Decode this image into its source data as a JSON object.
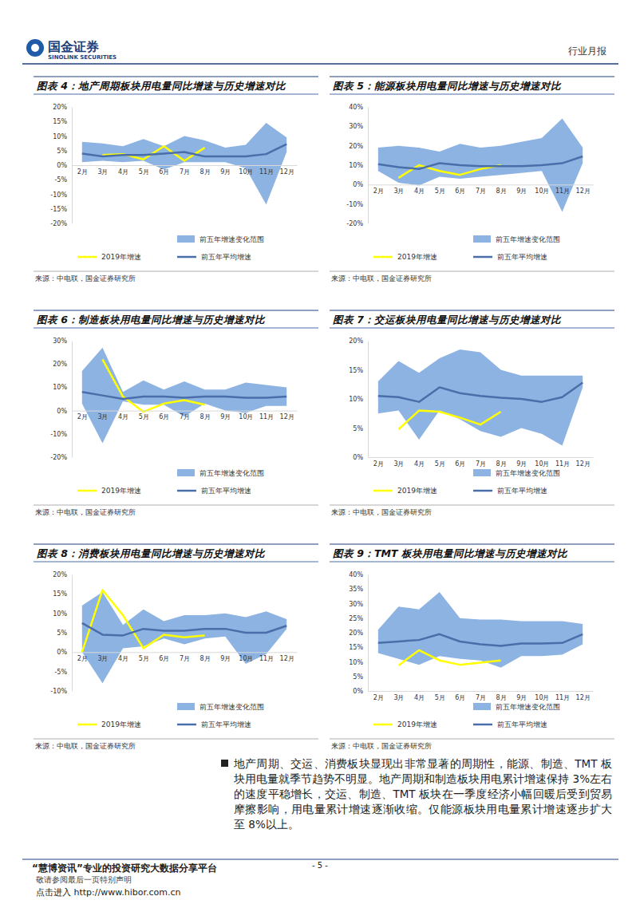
{
  "header": {
    "company": "国金证券",
    "company_en": "SINOLINK SECURITIES",
    "report_type": "行业月报"
  },
  "chart_data": [
    {
      "type": "line",
      "title": "图表 4：地产周期板块用电量同比增速与历史增速对比",
      "source": "来源：中电联，国金证券研究所",
      "categories": [
        "2月",
        "3月",
        "4月",
        "5月",
        "6月",
        "7月",
        "8月",
        "9月",
        "10月",
        "11月",
        "12月"
      ],
      "ylim": [
        -20,
        20
      ],
      "yticks": [
        {
          "value": -20,
          "label": "-20%"
        },
        {
          "value": -15,
          "label": "-15%"
        },
        {
          "value": -10,
          "label": "-10%"
        },
        {
          "value": -5,
          "label": "-5%"
        },
        {
          "value": 0,
          "label": "0%"
        },
        {
          "value": 5,
          "label": "5%"
        },
        {
          "value": 10,
          "label": "10%"
        },
        {
          "value": 15,
          "label": "15%"
        },
        {
          "value": 20,
          "label": "20%"
        }
      ],
      "grid": false,
      "legend": "bottom",
      "series": [
        {
          "name": "前五年增速变化范围",
          "type": "area",
          "color": "#8db3e2",
          "values": [
            8,
            7.5,
            6.5,
            9,
            6.5,
            10,
            8.5,
            6,
            7,
            14.5,
            9.5
          ],
          "low": [
            1,
            1.5,
            1,
            1.5,
            -1.5,
            1,
            1,
            1,
            -1,
            -13.5,
            4.5
          ]
        },
        {
          "name": "2019年增速",
          "type": "line",
          "color": "#ffff00",
          "values": [
            null,
            3.5,
            3.8,
            2,
            6.5,
            1.5,
            6,
            null,
            null,
            null,
            null
          ]
        },
        {
          "name": "前五年平均增速",
          "type": "line",
          "color": "#4a6ea9",
          "values": [
            4,
            3,
            3.5,
            3.5,
            4,
            4.5,
            3,
            3,
            3,
            3.8,
            7.2
          ]
        }
      ]
    },
    {
      "type": "line",
      "title": "图表 5：能源板块用电量同比增速与历史增速对比",
      "source": "来源：中电联，国金证券研究所",
      "categories": [
        "2月",
        "3月",
        "4月",
        "5月",
        "6月",
        "7月",
        "8月",
        "9月",
        "10月",
        "11月",
        "12月"
      ],
      "ylim": [
        -20,
        40
      ],
      "yticks": [
        {
          "value": -20,
          "label": "-20%"
        },
        {
          "value": -10,
          "label": "-10%"
        },
        {
          "value": 0,
          "label": "0%"
        },
        {
          "value": 10,
          "label": "10%"
        },
        {
          "value": 20,
          "label": "20%"
        },
        {
          "value": 30,
          "label": "30%"
        },
        {
          "value": 40,
          "label": "40%"
        }
      ],
      "grid": false,
      "legend": "bottom",
      "series": [
        {
          "name": "前五年增速变化范围",
          "type": "area",
          "color": "#8db3e2",
          "values": [
            19,
            20,
            19,
            17,
            21,
            19,
            20,
            22,
            24,
            34,
            19
          ],
          "low": [
            7,
            1,
            -0.5,
            4,
            3,
            4,
            5,
            6,
            7,
            -14,
            11
          ]
        },
        {
          "name": "2019年增速",
          "type": "line",
          "color": "#ffff00",
          "values": [
            null,
            3.5,
            10,
            7,
            5,
            8,
            10,
            null,
            null,
            null,
            null
          ]
        },
        {
          "name": "前五年平均增速",
          "type": "line",
          "color": "#4a6ea9",
          "values": [
            10.5,
            9,
            8,
            11,
            10,
            9.5,
            9.5,
            9.5,
            10,
            11,
            14.5
          ]
        }
      ]
    },
    {
      "type": "line",
      "title": "图表 6：制造板块用电量同比增速与历史增速对比",
      "source": "来源：中电联，国金证券研究所",
      "categories": [
        "2月",
        "3月",
        "4月",
        "5月",
        "6月",
        "7月",
        "8月",
        "9月",
        "10月",
        "11月",
        "12月"
      ],
      "ylim": [
        -20,
        30
      ],
      "yticks": [
        {
          "value": -20,
          "label": "-20%"
        },
        {
          "value": -10,
          "label": "-10%"
        },
        {
          "value": 0,
          "label": "0%"
        },
        {
          "value": 10,
          "label": "10%"
        },
        {
          "value": 20,
          "label": "20%"
        },
        {
          "value": 30,
          "label": "30%"
        }
      ],
      "grid": false,
      "legend": "bottom",
      "series": [
        {
          "name": "前五年增速变化范围",
          "type": "area",
          "color": "#8db3e2",
          "values": [
            17,
            27,
            8,
            13,
            9,
            12.5,
            9,
            9,
            12,
            11,
            10
          ],
          "low": [
            3,
            -14,
            4,
            2.5,
            2.5,
            -2.5,
            3,
            0,
            -1,
            2,
            2
          ]
        },
        {
          "name": "2019年增速",
          "type": "line",
          "color": "#ffff00",
          "values": [
            null,
            22,
            6,
            -0.5,
            3,
            4.5,
            2.5,
            null,
            null,
            null,
            null
          ]
        },
        {
          "name": "前五年平均增速",
          "type": "line",
          "color": "#4a6ea9",
          "values": [
            8,
            6.5,
            5,
            6,
            6,
            5.5,
            6,
            6,
            5.5,
            5.5,
            6
          ]
        }
      ]
    },
    {
      "type": "line",
      "title": "图表 7：交运板块用电量同比增速与历史增速对比",
      "source": "来源：中电联，国金证券研究所",
      "categories": [
        "2月",
        "3月",
        "4月",
        "5月",
        "6月",
        "7月",
        "8月",
        "9月",
        "10月",
        "11月",
        "12月"
      ],
      "ylim": [
        0,
        20
      ],
      "yticks": [
        {
          "value": 0,
          "label": "0%"
        },
        {
          "value": 5,
          "label": "5%"
        },
        {
          "value": 10,
          "label": "10%"
        },
        {
          "value": 15,
          "label": "15%"
        },
        {
          "value": 20,
          "label": "20%"
        }
      ],
      "grid": false,
      "legend": "bottom",
      "series": [
        {
          "name": "前五年增速变化范围",
          "type": "area",
          "color": "#8db3e2",
          "values": [
            13,
            16.5,
            14.5,
            17,
            18.5,
            18,
            15,
            14,
            14,
            14,
            14
          ],
          "low": [
            7.5,
            8,
            3,
            8,
            6.5,
            4.5,
            3.5,
            5,
            4,
            2,
            12
          ]
        },
        {
          "name": "2019年增速",
          "type": "line",
          "color": "#ffff00",
          "values": [
            null,
            4.8,
            8,
            7.8,
            6.8,
            5.6,
            7.8,
            null,
            null,
            null,
            null
          ]
        },
        {
          "name": "前五年平均增速",
          "type": "line",
          "color": "#4a6ea9",
          "values": [
            10.5,
            10.3,
            9.5,
            12,
            11,
            10.5,
            10.2,
            10,
            9.5,
            10.3,
            12.8
          ]
        }
      ]
    },
    {
      "type": "line",
      "title": "图表 8：消费板块用电量同比增速与历史增速对比",
      "source": "来源：中电联，国金证券研究所",
      "categories": [
        "2月",
        "3月",
        "4月",
        "5月",
        "6月",
        "7月",
        "8月",
        "9月",
        "10月",
        "11月",
        "12月"
      ],
      "ylim": [
        -10,
        20
      ],
      "yticks": [
        {
          "value": -10,
          "label": "-10%"
        },
        {
          "value": -5,
          "label": "-5%"
        },
        {
          "value": 0,
          "label": "0%"
        },
        {
          "value": 5,
          "label": "5%"
        },
        {
          "value": 10,
          "label": "10%"
        },
        {
          "value": 15,
          "label": "15%"
        },
        {
          "value": 20,
          "label": "20%"
        }
      ],
      "grid": false,
      "legend": "bottom",
      "series": [
        {
          "name": "前五年增速变化范围",
          "type": "area",
          "color": "#8db3e2",
          "values": [
            12,
            15.5,
            7,
            11,
            8,
            9.5,
            9.5,
            10,
            9,
            10.5,
            8.5
          ],
          "low": [
            0,
            -8,
            1,
            1.5,
            3.5,
            2,
            3.5,
            4,
            -3,
            -0.5,
            6
          ]
        },
        {
          "name": "2019年增速",
          "type": "line",
          "color": "#ffff00",
          "values": [
            0,
            16,
            9.5,
            1,
            4.5,
            3.8,
            4.3,
            null,
            null,
            null,
            null
          ]
        },
        {
          "name": "前五年平均增速",
          "type": "line",
          "color": "#4a6ea9",
          "values": [
            7.5,
            4.5,
            4.3,
            6,
            5.5,
            5.5,
            6,
            6,
            5,
            5,
            6.8
          ]
        }
      ]
    },
    {
      "type": "line",
      "title": "图表 9：TMT 板块用电量同比增速与历史增速对比",
      "source": "来源：中电联，国金证券研究所",
      "categories": [
        "2月",
        "3月",
        "4月",
        "5月",
        "6月",
        "7月",
        "8月",
        "9月",
        "10月",
        "11月",
        "12月"
      ],
      "ylim": [
        0,
        40
      ],
      "yticks": [
        {
          "value": 0,
          "label": "0%"
        },
        {
          "value": 5,
          "label": "5%"
        },
        {
          "value": 10,
          "label": "10%"
        },
        {
          "value": 15,
          "label": "15%"
        },
        {
          "value": 20,
          "label": "20%"
        },
        {
          "value": 25,
          "label": "25%"
        },
        {
          "value": 30,
          "label": "30%"
        },
        {
          "value": 35,
          "label": "35%"
        },
        {
          "value": 40,
          "label": "40%"
        }
      ],
      "grid": false,
      "legend": "bottom",
      "series": [
        {
          "name": "前五年增速变化范围",
          "type": "area",
          "color": "#8db3e2",
          "values": [
            21,
            29,
            28,
            34,
            25,
            24.5,
            24.5,
            24,
            24,
            24,
            23
          ],
          "low": [
            13,
            11,
            9,
            12,
            11,
            10.5,
            8,
            12,
            12,
            12.5,
            16
          ]
        },
        {
          "name": "2019年增速",
          "type": "line",
          "color": "#ffff00",
          "values": [
            null,
            8.8,
            14,
            10.5,
            9,
            9.7,
            10.5,
            null,
            null,
            null,
            null
          ]
        },
        {
          "name": "前五年平均增速",
          "type": "line",
          "color": "#4a6ea9",
          "values": [
            16.5,
            17,
            17.5,
            19.5,
            17,
            16,
            15.5,
            16.3,
            16.3,
            16.5,
            19.5
          ]
        }
      ]
    }
  ],
  "body": {
    "paragraph": "地产周期、交运、消费板块显现出非常显著的周期性，能源、制造、TMT 板块用电量就季节趋势不明显。地产周期和制造板块用电累计增速保持 3%左右的速度平稳增长，交运、制造、TMT 板块在一季度经济小幅回暖后受到贸易摩擦影响，用电量累计增速逐渐收缩。仅能源板块用电量累计增速逐步扩大至 8%以上。"
  },
  "footer": {
    "platform": "“慧博资讯”专业的投资研究大数据分享平台",
    "page": "- 5 -",
    "notice": "敬请参阅最后一页特别声明",
    "link": "点击进入 http://www.hibor.com.cn"
  }
}
